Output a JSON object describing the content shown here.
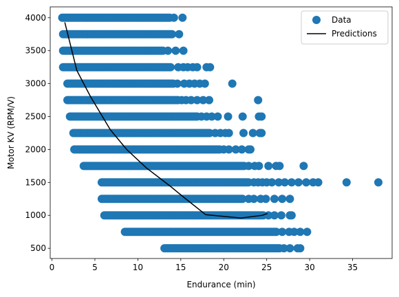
{
  "chart_data": {
    "type": "scatter",
    "xlabel": "Endurance (min)",
    "ylabel": "Motor KV (RPM/V)",
    "xlim": [
      -0.2,
      39.6
    ],
    "ylim": [
      345,
      4165
    ],
    "xticks": [
      0,
      5,
      10,
      15,
      20,
      25,
      30,
      35
    ],
    "yticks": [
      500,
      1000,
      1500,
      2000,
      2500,
      3000,
      3500,
      4000
    ],
    "grid": false,
    "legend_position": "top-right",
    "legend": [
      "Data",
      "Predictions"
    ],
    "colors": {
      "data": "#1f77b4",
      "predictions": "#000000"
    },
    "scatter_rows": [
      {
        "kv": 4000,
        "band": [
          1.2,
          13.8
        ],
        "extra": [
          14.2,
          15.2
        ]
      },
      {
        "kv": 3750,
        "band": [
          1.3,
          14.0
        ],
        "extra": [
          14.8
        ]
      },
      {
        "kv": 3500,
        "band": [
          1.3,
          13.0
        ],
        "extra": [
          13.5,
          14.4,
          15.3
        ]
      },
      {
        "kv": 3250,
        "band": [
          1.3,
          13.9
        ],
        "extra": [
          14.7,
          15.3,
          15.8,
          16.4,
          16.9,
          18.0,
          18.4
        ]
      },
      {
        "kv": 3000,
        "band": [
          1.8,
          14.3
        ],
        "extra": [
          14.6,
          15.4,
          16.0,
          16.6,
          17.2,
          17.8,
          21.0
        ]
      },
      {
        "kv": 2750,
        "band": [
          1.8,
          14.7
        ],
        "extra": [
          15.1,
          15.6,
          16.2,
          16.9,
          17.6,
          18.3,
          24.0
        ]
      },
      {
        "kv": 2500,
        "band": [
          2.1,
          17.0
        ],
        "extra": [
          17.4,
          18.0,
          18.6,
          19.3,
          20.5,
          22.2,
          24.1,
          24.4
        ]
      },
      {
        "kv": 2250,
        "band": [
          2.5,
          18.5
        ],
        "extra": [
          19.0,
          19.6,
          20.2,
          20.6,
          22.3,
          23.4,
          24.2,
          24.4
        ]
      },
      {
        "kv": 2000,
        "band": [
          2.6,
          19.6
        ],
        "extra": [
          20.0,
          20.6,
          21.4,
          22.1,
          22.9,
          23.1
        ]
      },
      {
        "kv": 1750,
        "band": [
          3.7,
          22.4
        ],
        "extra": [
          22.9,
          23.6,
          24.1,
          25.2,
          26.1,
          26.5,
          29.3
        ]
      },
      {
        "kv": 1500,
        "band": [
          5.8,
          23.0
        ],
        "extra": [
          23.5,
          24.0,
          24.5,
          25.0,
          25.6,
          26.4,
          27.1,
          27.9,
          28.7,
          29.6,
          30.4,
          31.0,
          34.3,
          38.0
        ]
      },
      {
        "kv": 1250,
        "band": [
          5.8,
          22.3
        ],
        "extra": [
          22.9,
          23.5,
          24.3,
          24.9,
          25.9,
          26.8,
          27.7
        ]
      },
      {
        "kv": 1000,
        "band": [
          6.1,
          24.7
        ],
        "extra": [
          25.2,
          25.9,
          26.7,
          27.7,
          27.9
        ]
      },
      {
        "kv": 750,
        "band": [
          8.5,
          26.2
        ],
        "extra": [
          26.8,
          27.6,
          28.2,
          28.9,
          29.7
        ]
      },
      {
        "kv": 500,
        "band": [
          13.1,
          26.5
        ],
        "extra": [
          27.0,
          27.7,
          28.6,
          28.9
        ]
      }
    ],
    "series": [
      {
        "name": "Predictions",
        "x": [
          1.5,
          2.9,
          4.5,
          6.8,
          8.7,
          11.0,
          13.7,
          15.1,
          17.9,
          22.0,
          24.5,
          25.1
        ],
        "y": [
          3930,
          3200,
          2800,
          2300,
          2000,
          1720,
          1450,
          1300,
          1010,
          960,
          1000,
          1030
        ]
      }
    ]
  }
}
